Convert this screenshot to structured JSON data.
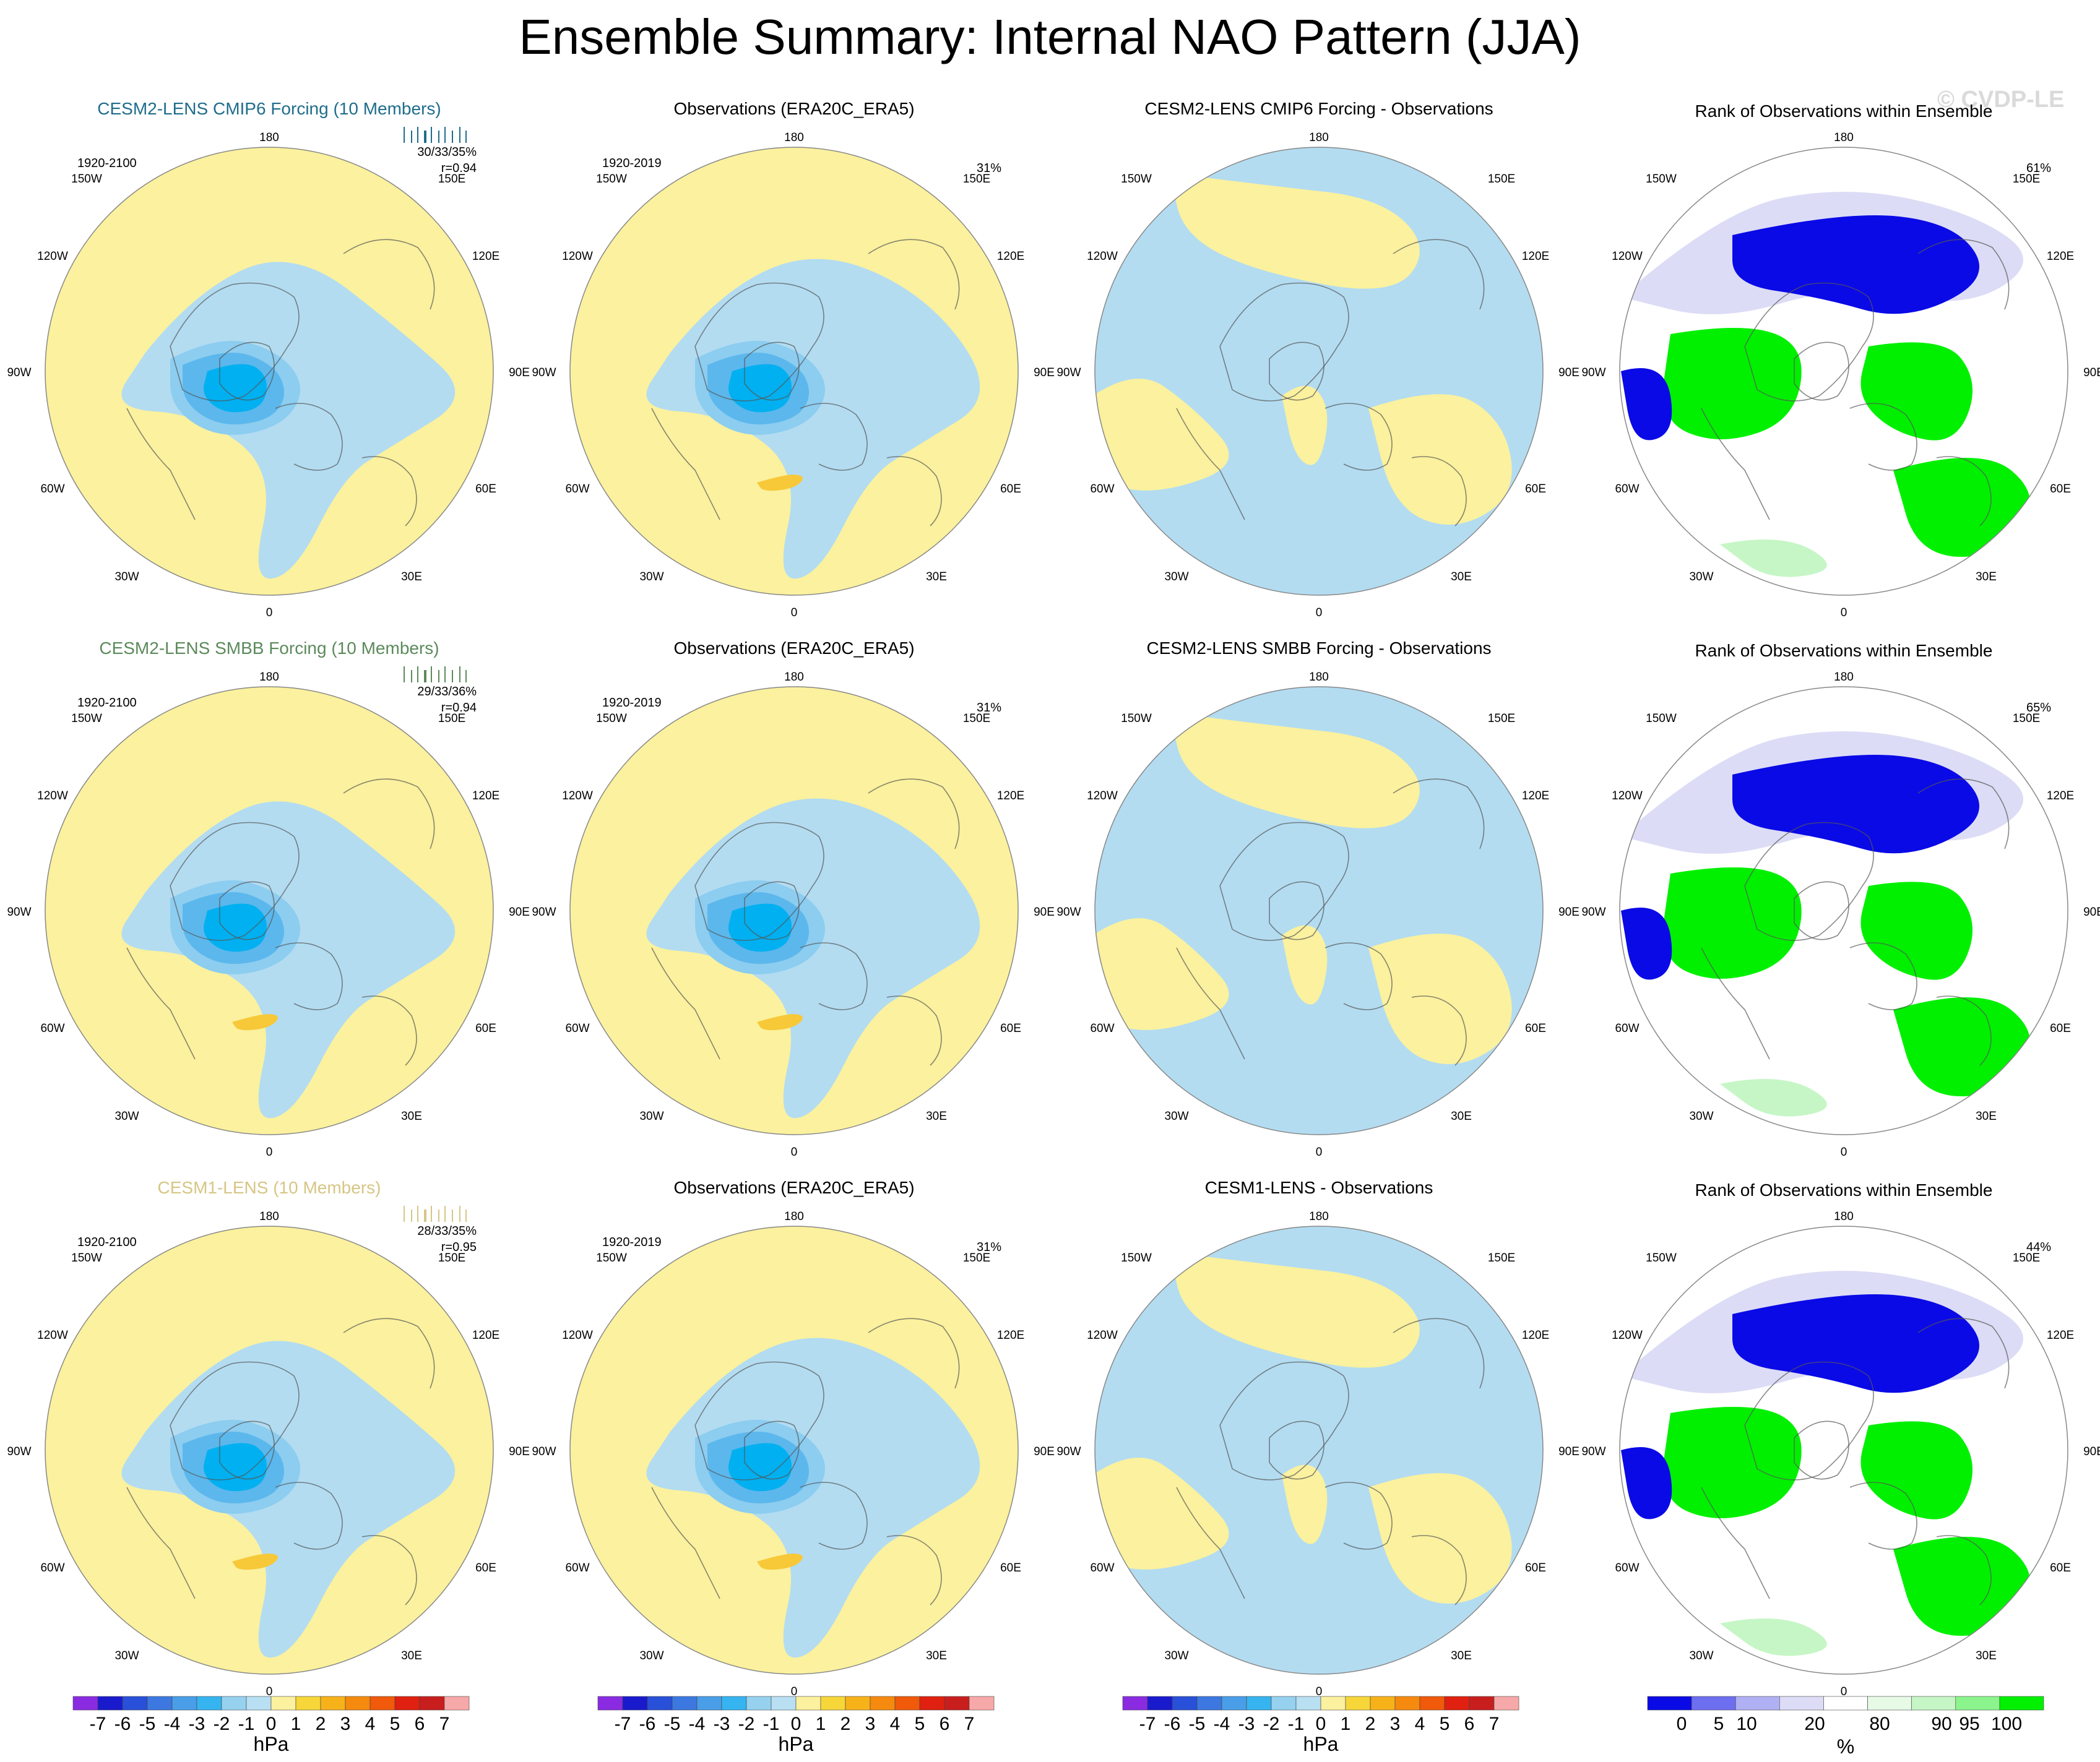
{
  "title": "Ensemble Summary: Internal NAO Pattern (JJA)",
  "watermark": "© CVDP-LE",
  "colors": {
    "pos1": "#fbf19e",
    "neg1": "#b3dcf1",
    "neg2": "#8ccdf0",
    "neg3": "#5cb7ec",
    "neg4": "#00b0f0",
    "pos2": "#f7c838",
    "rank_low": "#0a0ae6",
    "rank_mid_low": "#dcdcf6",
    "rank_high": "#00f000",
    "rank_mid_high": "#c6f6c6"
  },
  "lon_labels": {
    "top": "180",
    "bottom": "0",
    "left_upper": "150W",
    "right_upper": "150E",
    "left_mid_upper": "120W",
    "right_mid_upper": "120E",
    "left_mid": "90W",
    "right_mid": "90E",
    "left_mid_lower": "60W",
    "right_mid_lower": "60E",
    "left_lower": "30W",
    "right_lower": "30E"
  },
  "rows": [
    {
      "model": {
        "title": "CESM2-LENS CMIP6 Forcing (10 Members)",
        "title_color": "#1f6d8c",
        "years": "1920-2100",
        "stats": "30/33/35%",
        "r": "r=0.94"
      },
      "obs": {
        "title": "Observations (ERA20C_ERA5)",
        "years": "1920-2019",
        "pct": "31%"
      },
      "diff": {
        "title": "CESM2-LENS CMIP6 Forcing - Observations"
      },
      "rank": {
        "title": "Rank of Observations within Ensemble",
        "pct": "61%"
      }
    },
    {
      "model": {
        "title": "CESM2-LENS SMBB Forcing (10 Members)",
        "title_color": "#5c8a5c",
        "years": "1920-2100",
        "stats": "29/33/36%",
        "r": "r=0.94"
      },
      "obs": {
        "title": "Observations (ERA20C_ERA5)",
        "years": "1920-2019",
        "pct": "31%"
      },
      "diff": {
        "title": "CESM2-LENS SMBB Forcing - Observations"
      },
      "rank": {
        "title": "Rank of Observations within Ensemble",
        "pct": "65%"
      }
    },
    {
      "model": {
        "title": "CESM1-LENS (10 Members)",
        "title_color": "#d6c685",
        "years": "1920-2100",
        "stats": "28/33/35%",
        "r": "r=0.95"
      },
      "obs": {
        "title": "Observations (ERA20C_ERA5)",
        "years": "1920-2019",
        "pct": "31%"
      },
      "diff": {
        "title": "CESM1-LENS - Observations"
      },
      "rank": {
        "title": "Rank of Observations within Ensemble",
        "pct": "44%"
      }
    }
  ],
  "colorbar_hpa": {
    "labels": [
      "-7",
      "-6",
      "-5",
      "-4",
      "-3",
      "-2",
      "-1",
      "0",
      "1",
      "2",
      "3",
      "4",
      "5",
      "6",
      "7"
    ],
    "colors": [
      "#8a2be2",
      "#1a1acd",
      "#2850d8",
      "#3c78e0",
      "#4a9ee8",
      "#36b4f0",
      "#96d2f0",
      "#b8e0f2",
      "#fbf19e",
      "#f7d63a",
      "#f7b21a",
      "#f58a0e",
      "#f05a0a",
      "#e02010",
      "#c81e1e",
      "#f7a8a8"
    ],
    "unit": "hPa"
  },
  "colorbar_rank": {
    "labels": [
      "0",
      "5",
      "10",
      "20",
      "80",
      "90",
      "95",
      "100"
    ],
    "colors": [
      "#0a0ae6",
      "#6e6ef0",
      "#b0b0f4",
      "#dcdcf6",
      "#ffffff",
      "#e6fae6",
      "#c6f6c6",
      "#8cf48c",
      "#00f000"
    ],
    "unit": "%"
  }
}
